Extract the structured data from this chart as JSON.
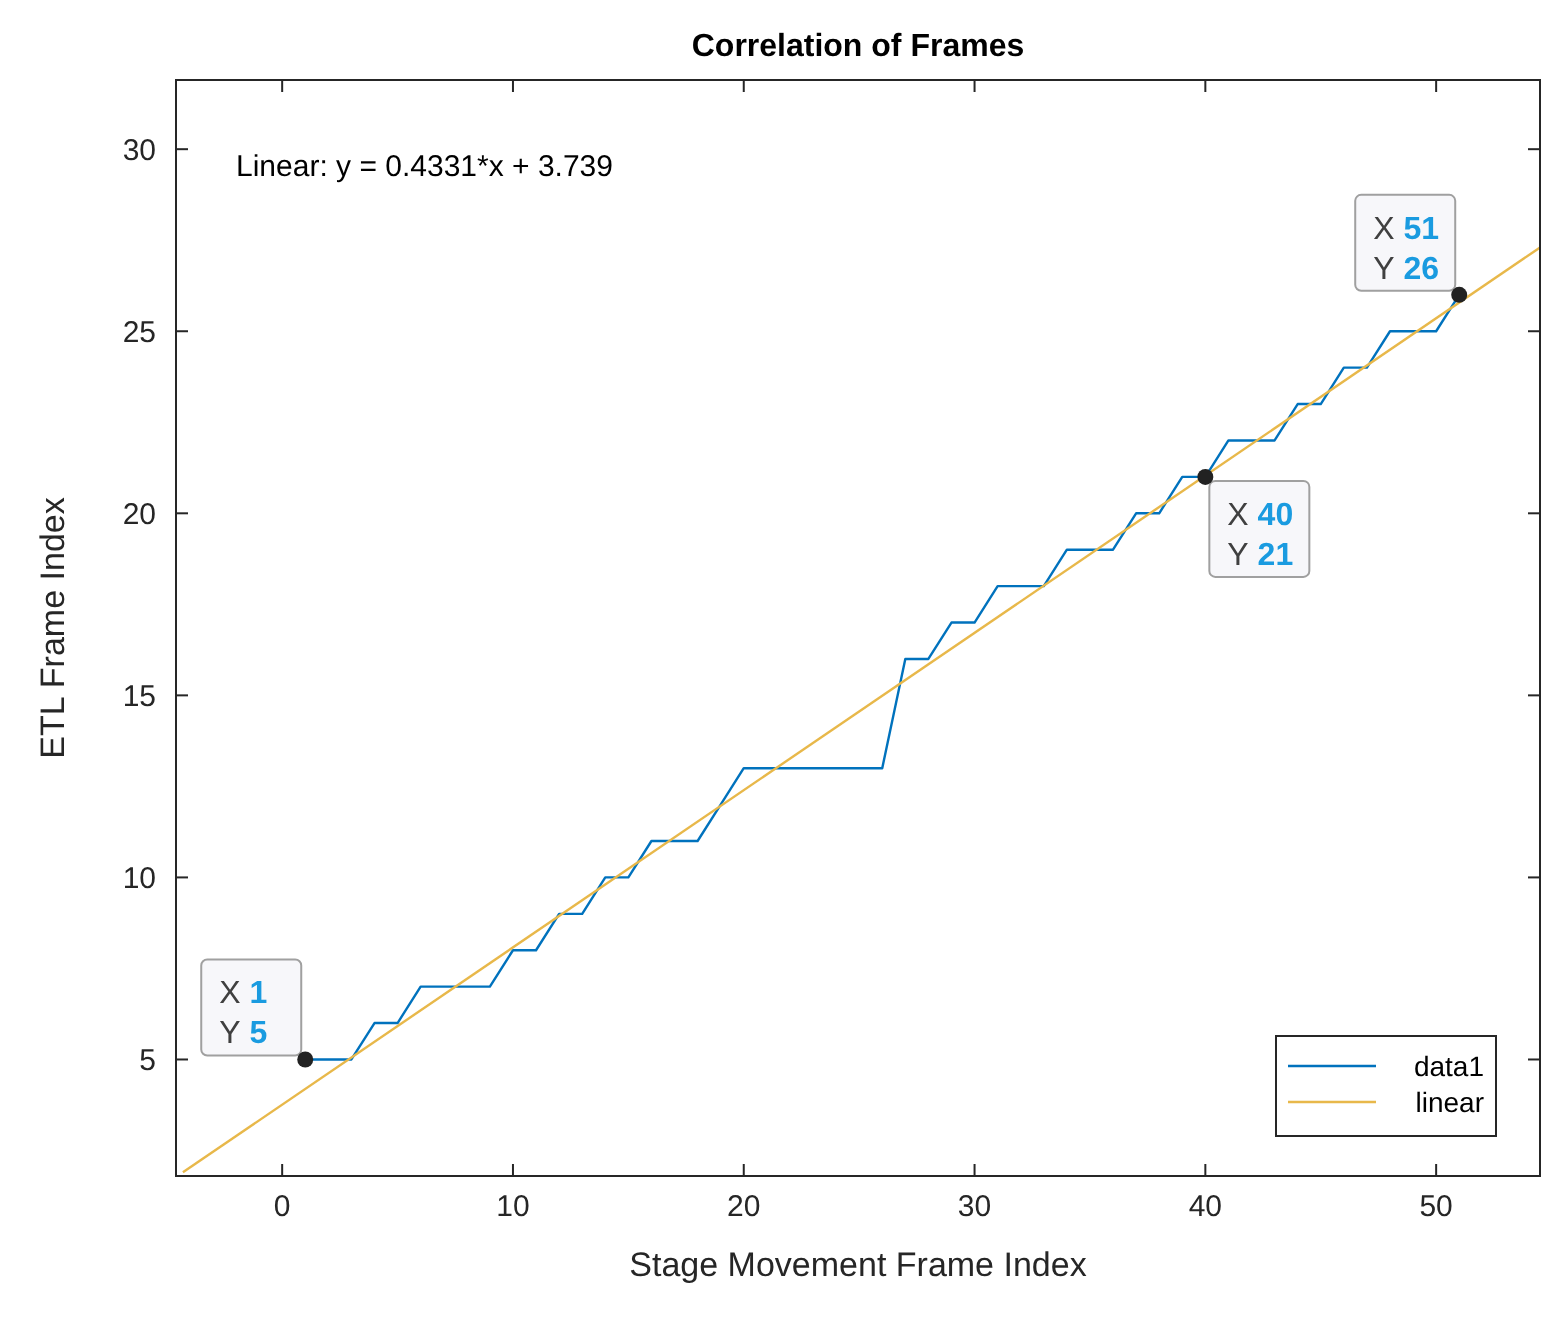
{
  "chart_data": {
    "type": "line",
    "title": "Correlation of Frames",
    "xlabel": "Stage Movement Frame Index",
    "ylabel": "ETL Frame Index",
    "xlim": [
      -4.6,
      54.5
    ],
    "ylim": [
      1.8,
      31.9
    ],
    "xticks": [
      0,
      10,
      20,
      30,
      40,
      50
    ],
    "yticks": [
      5,
      10,
      15,
      20,
      25,
      30
    ],
    "grid": false,
    "legend": "bottom right",
    "marker": "none",
    "line_style": "solid",
    "series": [
      {
        "name": "data1",
        "color": "#0072bd",
        "x": [
          1,
          2,
          3,
          4,
          5,
          6,
          7,
          8,
          9,
          10,
          11,
          12,
          13,
          14,
          15,
          16,
          17,
          18,
          19,
          20,
          21,
          22,
          23,
          24,
          25,
          26,
          27,
          28,
          29,
          30,
          31,
          32,
          33,
          34,
          35,
          36,
          37,
          38,
          39,
          40,
          41,
          42,
          43,
          44,
          45,
          46,
          47,
          48,
          49,
          50,
          51
        ],
        "values": [
          5,
          5,
          5,
          6,
          6,
          7,
          7,
          7,
          7,
          8,
          8,
          9,
          9,
          10,
          10,
          11,
          11,
          11,
          12,
          13,
          13,
          13,
          13,
          13,
          13,
          13,
          16,
          16,
          17,
          17,
          18,
          18,
          18,
          19,
          19,
          19,
          20,
          20,
          21,
          21,
          22,
          22,
          22,
          23,
          23,
          24,
          24,
          25,
          25,
          25,
          26
        ]
      },
      {
        "name": "linear",
        "color": "#e8b84a",
        "x": [
          -4.3,
          54.5
        ],
        "values": [
          1.9,
          27.3
        ]
      }
    ],
    "annotations": [
      "Linear:  y = 0.4331*x + 3.739",
      {
        "text": "X 1\nY 5",
        "x": 1,
        "y": 5
      },
      {
        "text": "X 40\nY 21",
        "x": 40,
        "y": 21
      },
      {
        "text": "X 51\nY 26",
        "x": 51,
        "y": 26
      }
    ]
  }
}
